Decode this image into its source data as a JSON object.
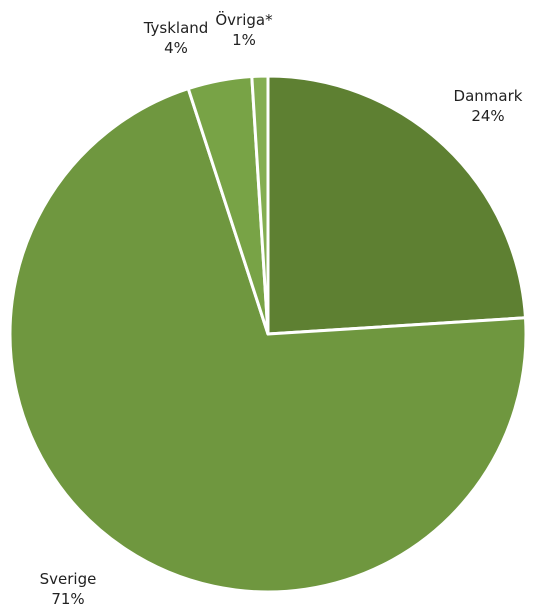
{
  "chart_data": {
    "type": "pie",
    "title": "",
    "slices": [
      {
        "label": "Danmark",
        "value": 24,
        "value_label": "24%",
        "color": "#5e8032"
      },
      {
        "label": "Sverige",
        "value": 71,
        "value_label": "71%",
        "color": "#6f973f"
      },
      {
        "label": "Tyskland",
        "value": 4,
        "value_label": "4%",
        "color": "#78a346"
      },
      {
        "label": "Övriga*",
        "value": 1,
        "value_label": "1%",
        "color": "#84ae52"
      }
    ],
    "start_angle_deg": 0,
    "direction": "clockwise",
    "legend": "none",
    "labels_outside": true
  }
}
